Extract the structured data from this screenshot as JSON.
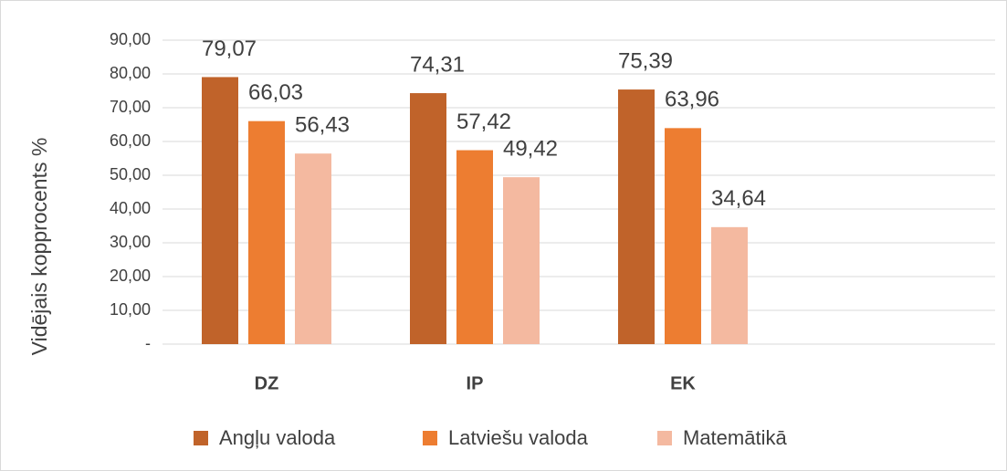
{
  "chart_data": {
    "type": "bar",
    "y_label": "Vidējais kopprocents %",
    "categories": [
      "DZ",
      "IP",
      "EK",
      null
    ],
    "series": [
      {
        "name": "Angļu valoda",
        "color": "#c0632a",
        "values": [
          79.07,
          74.31,
          75.39,
          null
        ],
        "value_labels": [
          "79,07",
          "74,31",
          "75,39",
          null
        ]
      },
      {
        "name": "Latviešu valoda",
        "color": "#ed7d31",
        "values": [
          66.03,
          57.42,
          63.96,
          null
        ],
        "value_labels": [
          "66,03",
          "57,42",
          "63,96",
          null
        ]
      },
      {
        "name": "Matemātikā",
        "color": "#f4b9a0",
        "values": [
          56.43,
          49.42,
          34.64,
          null
        ],
        "value_labels": [
          "56,43",
          "49,42",
          "34,64",
          null
        ]
      }
    ],
    "ylim": [
      0,
      90
    ],
    "yticks": [
      {
        "value": 0,
        "label": "-"
      },
      {
        "value": 10,
        "label": "10,00"
      },
      {
        "value": 20,
        "label": "20,00"
      },
      {
        "value": 30,
        "label": "30,00"
      },
      {
        "value": 40,
        "label": "40,00"
      },
      {
        "value": 50,
        "label": "50,00"
      },
      {
        "value": 60,
        "label": "60,00"
      },
      {
        "value": 70,
        "label": "70,00"
      },
      {
        "value": 80,
        "label": "80,00"
      },
      {
        "value": 90,
        "label": "90,00"
      }
    ],
    "grid": true,
    "legend": "bottom"
  }
}
